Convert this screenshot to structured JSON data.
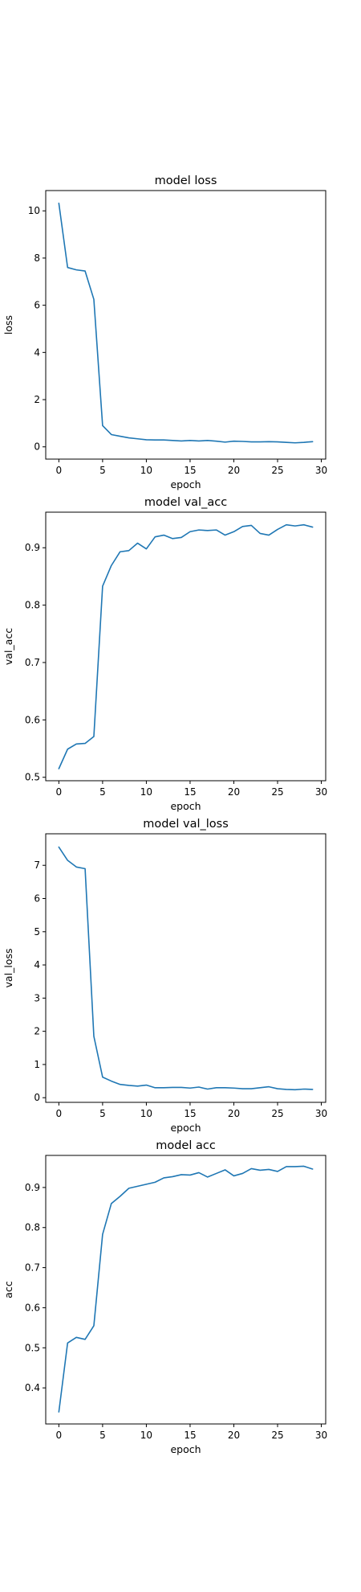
{
  "figure": {
    "background": "#ffffff",
    "line_color": "#1f77b4"
  },
  "chart_data": [
    {
      "type": "line",
      "title": "model loss",
      "xlabel": "epoch",
      "ylabel": "loss",
      "xlim": [
        -1.5,
        30.5
      ],
      "ylim": [
        -0.52,
        10.86
      ],
      "xticks": [
        0,
        5,
        10,
        15,
        20,
        25,
        30
      ],
      "yticks": [
        0,
        2,
        4,
        6,
        8,
        10
      ],
      "grid": false,
      "legend": "none",
      "series": [
        {
          "color": "#1f77b4",
          "x": [
            0,
            1,
            2,
            3,
            4,
            5,
            6,
            7,
            8,
            9,
            10,
            11,
            12,
            13,
            14,
            15,
            16,
            17,
            18,
            19,
            20,
            21,
            22,
            23,
            24,
            25,
            26,
            27,
            28,
            29
          ],
          "y": [
            10.32,
            7.6,
            7.5,
            7.45,
            6.25,
            0.9,
            0.52,
            0.45,
            0.38,
            0.34,
            0.3,
            0.29,
            0.29,
            0.27,
            0.25,
            0.27,
            0.25,
            0.27,
            0.24,
            0.2,
            0.24,
            0.23,
            0.21,
            0.21,
            0.22,
            0.21,
            0.19,
            0.17,
            0.19,
            0.22
          ]
        }
      ]
    },
    {
      "type": "line",
      "title": "model val_acc",
      "xlabel": "epoch",
      "ylabel": "val_acc",
      "xlim": [
        -1.5,
        30.5
      ],
      "ylim": [
        0.494,
        0.962
      ],
      "xticks": [
        0,
        5,
        10,
        15,
        20,
        25,
        30
      ],
      "yticks": [
        0.5,
        0.6,
        0.7,
        0.8,
        0.9
      ],
      "grid": false,
      "legend": "none",
      "series": [
        {
          "color": "#1f77b4",
          "x": [
            0,
            1,
            2,
            3,
            4,
            5,
            6,
            7,
            8,
            9,
            10,
            11,
            12,
            13,
            14,
            15,
            16,
            17,
            18,
            19,
            20,
            21,
            22,
            23,
            24,
            25,
            26,
            27,
            28,
            29
          ],
          "y": [
            0.515,
            0.549,
            0.558,
            0.559,
            0.571,
            0.833,
            0.869,
            0.893,
            0.895,
            0.908,
            0.898,
            0.919,
            0.922,
            0.916,
            0.918,
            0.928,
            0.931,
            0.93,
            0.931,
            0.922,
            0.928,
            0.937,
            0.939,
            0.925,
            0.922,
            0.932,
            0.94,
            0.938,
            0.94,
            0.936
          ]
        }
      ]
    },
    {
      "type": "line",
      "title": "model val_loss",
      "xlabel": "epoch",
      "ylabel": "val_loss",
      "xlim": [
        -1.5,
        30.5
      ],
      "ylim": [
        -0.14,
        7.95
      ],
      "xticks": [
        0,
        5,
        10,
        15,
        20,
        25,
        30
      ],
      "yticks": [
        0,
        1,
        2,
        3,
        4,
        5,
        6,
        7
      ],
      "grid": false,
      "legend": "none",
      "series": [
        {
          "color": "#1f77b4",
          "x": [
            0,
            1,
            2,
            3,
            4,
            5,
            6,
            7,
            8,
            9,
            10,
            11,
            12,
            13,
            14,
            15,
            16,
            17,
            18,
            19,
            20,
            21,
            22,
            23,
            24,
            25,
            26,
            27,
            28,
            29
          ],
          "y": [
            7.55,
            7.15,
            6.95,
            6.9,
            1.85,
            0.62,
            0.5,
            0.4,
            0.37,
            0.35,
            0.38,
            0.3,
            0.3,
            0.31,
            0.31,
            0.29,
            0.32,
            0.26,
            0.3,
            0.3,
            0.29,
            0.27,
            0.27,
            0.3,
            0.33,
            0.27,
            0.25,
            0.24,
            0.26,
            0.25
          ]
        }
      ]
    },
    {
      "type": "line",
      "title": "model acc",
      "xlabel": "epoch",
      "ylabel": "acc",
      "xlim": [
        -1.5,
        30.5
      ],
      "ylim": [
        0.31,
        0.98
      ],
      "xticks": [
        0,
        5,
        10,
        15,
        20,
        25,
        30
      ],
      "yticks": [
        0.4,
        0.5,
        0.6,
        0.7,
        0.8,
        0.9
      ],
      "grid": false,
      "legend": "none",
      "series": [
        {
          "color": "#1f77b4",
          "x": [
            0,
            1,
            2,
            3,
            4,
            5,
            6,
            7,
            8,
            9,
            10,
            11,
            12,
            13,
            14,
            15,
            16,
            17,
            18,
            19,
            20,
            21,
            22,
            23,
            24,
            25,
            26,
            27,
            28,
            29
          ],
          "y": [
            0.34,
            0.512,
            0.526,
            0.521,
            0.555,
            0.783,
            0.86,
            0.878,
            0.898,
            0.903,
            0.908,
            0.913,
            0.924,
            0.927,
            0.932,
            0.931,
            0.937,
            0.926,
            0.935,
            0.944,
            0.929,
            0.935,
            0.947,
            0.943,
            0.945,
            0.94,
            0.952,
            0.952,
            0.953,
            0.946
          ]
        }
      ]
    }
  ]
}
